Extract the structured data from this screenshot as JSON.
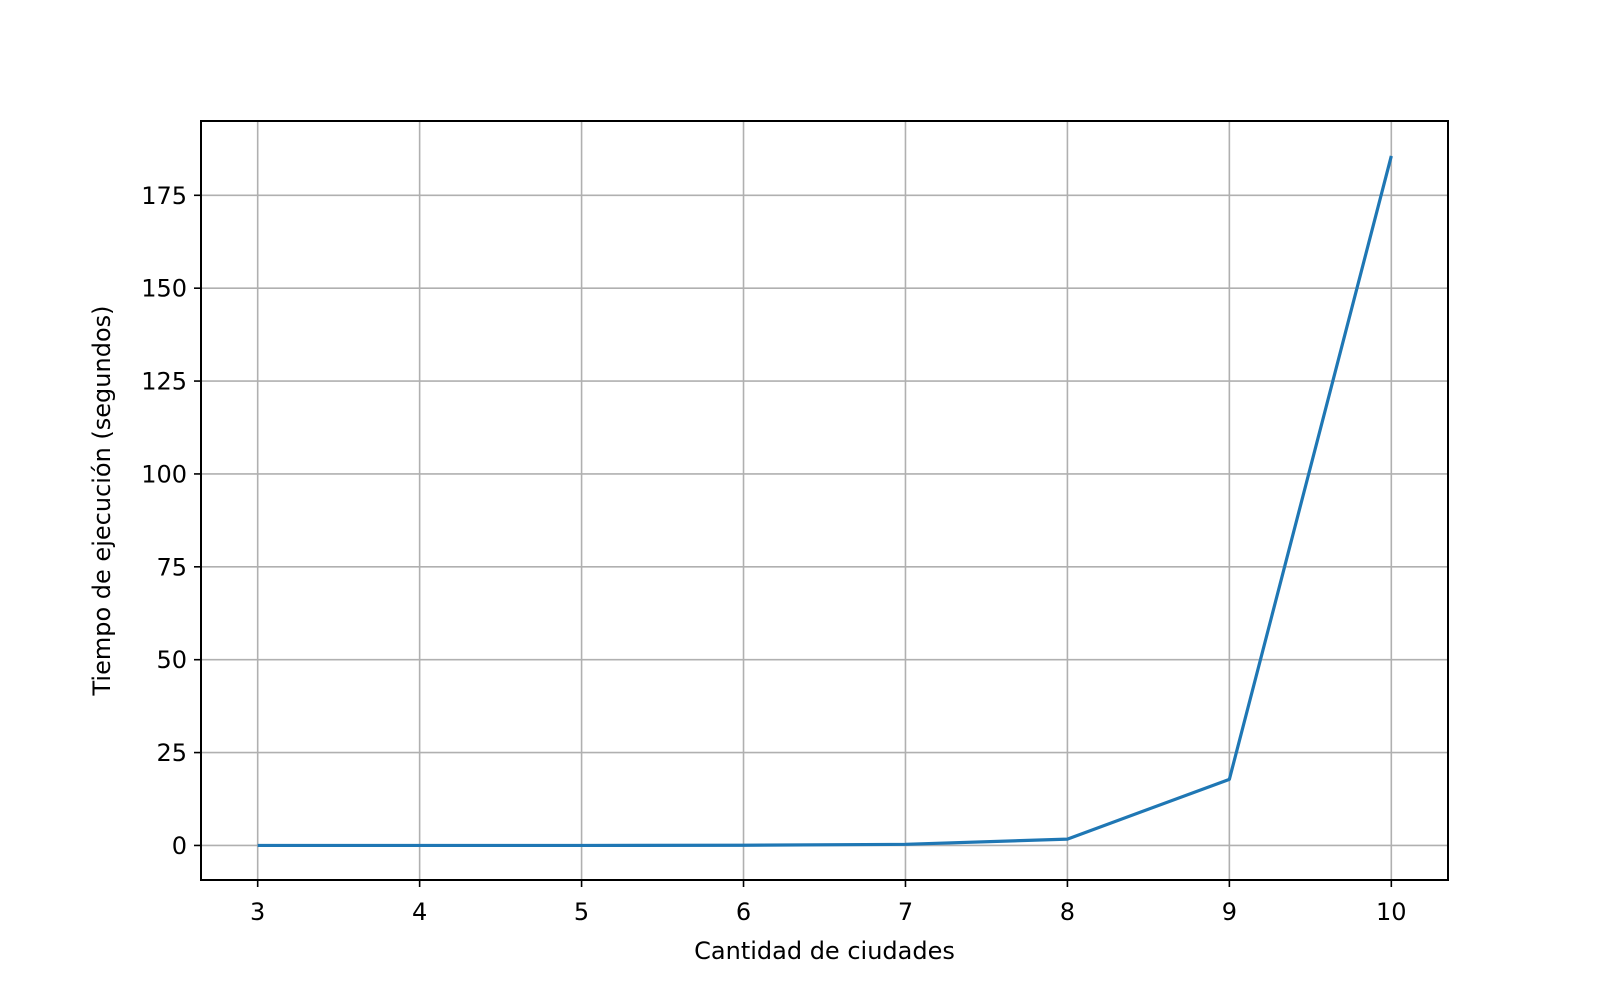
{
  "chart_data": {
    "type": "line",
    "title": "",
    "xlabel": "Cantidad de ciudades",
    "ylabel": "Tiempo de ejecución (segundos)",
    "x": [
      3,
      4,
      5,
      6,
      7,
      8,
      9,
      10
    ],
    "series": [
      {
        "values": [
          0.0,
          0.0,
          0.0,
          0.05,
          0.3,
          1.7,
          17.8,
          185.6
        ],
        "color": "#1f77b4"
      }
    ],
    "xlim": [
      2.65,
      10.35
    ],
    "ylim": [
      -9.3,
      195.0
    ],
    "xticks": [
      3,
      4,
      5,
      6,
      7,
      8,
      9,
      10
    ],
    "yticks": [
      0,
      25,
      50,
      75,
      100,
      125,
      150,
      175
    ],
    "grid": true,
    "legend": "none"
  }
}
